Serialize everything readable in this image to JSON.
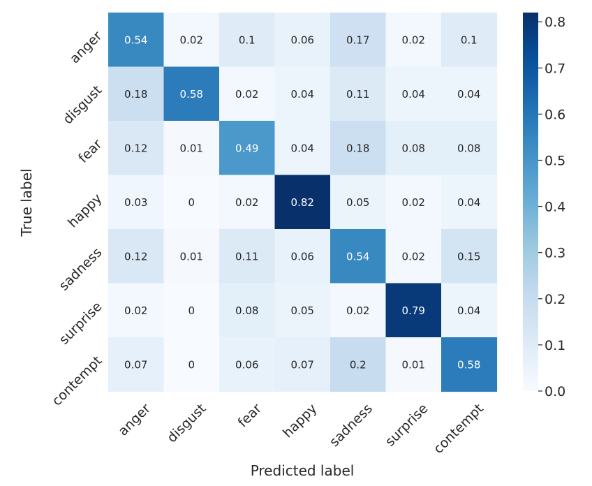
{
  "chart_data": {
    "type": "heatmap",
    "title": "",
    "xlabel": "Predicted label",
    "ylabel": "True label",
    "x_categories": [
      "anger",
      "disgust",
      "fear",
      "happy",
      "sadness",
      "surprise",
      "contempt"
    ],
    "y_categories": [
      "anger",
      "disgust",
      "fear",
      "happy",
      "sadness",
      "surprise",
      "contempt"
    ],
    "values": [
      [
        0.54,
        0.02,
        0.1,
        0.06,
        0.17,
        0.02,
        0.1
      ],
      [
        0.18,
        0.58,
        0.02,
        0.04,
        0.11,
        0.04,
        0.04
      ],
      [
        0.12,
        0.01,
        0.49,
        0.04,
        0.18,
        0.08,
        0.08
      ],
      [
        0.03,
        0,
        0.02,
        0.82,
        0.05,
        0.02,
        0.04
      ],
      [
        0.12,
        0.01,
        0.11,
        0.06,
        0.54,
        0.02,
        0.15
      ],
      [
        0.02,
        0,
        0.08,
        0.05,
        0.02,
        0.79,
        0.04
      ],
      [
        0.07,
        0,
        0.06,
        0.07,
        0.2,
        0.01,
        0.58
      ]
    ],
    "colormap": "Blues",
    "vmin": 0,
    "vmax": 0.82,
    "colorbar_ticks": [
      0.0,
      0.1,
      0.2,
      0.3,
      0.4,
      0.5,
      0.6,
      0.7,
      0.8
    ],
    "colorbar_tick_labels": [
      "0.0",
      "0.1",
      "0.2",
      "0.3",
      "0.4",
      "0.5",
      "0.6",
      "0.7",
      "0.8"
    ],
    "annotation_light_color": "#ffffff",
    "annotation_dark_color": "#262626"
  }
}
